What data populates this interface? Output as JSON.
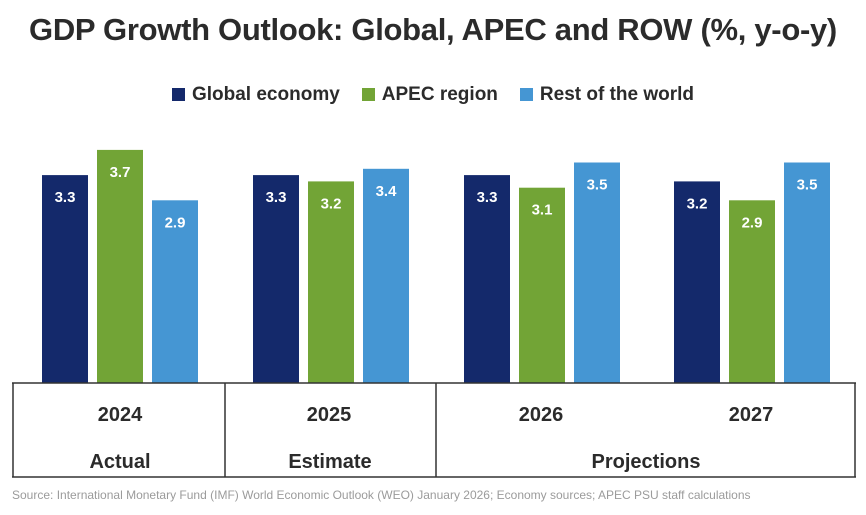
{
  "chart_data": {
    "type": "bar",
    "title": "GDP Growth Outlook: Global, APEC and ROW (%, y-o-y)",
    "categories": [
      "2024",
      "2025",
      "2026",
      "2027"
    ],
    "groups": [
      {
        "label": "Actual",
        "categories": [
          "2024"
        ]
      },
      {
        "label": "Estimate",
        "categories": [
          "2025"
        ]
      },
      {
        "label": "Projections",
        "categories": [
          "2026",
          "2027"
        ]
      }
    ],
    "series": [
      {
        "name": "Global economy",
        "color": "#14296b",
        "values": [
          3.3,
          3.3,
          3.3,
          3.2
        ],
        "labels": [
          "3.3",
          "3.3",
          "3.3",
          "3.2"
        ]
      },
      {
        "name": "APEC region",
        "color": "#72a436",
        "values": [
          3.7,
          3.2,
          3.1,
          2.9
        ],
        "labels": [
          "3.7",
          "3.2",
          "3.1",
          "2.9"
        ]
      },
      {
        "name": "Rest of the world",
        "color": "#4596d3",
        "values": [
          2.9,
          3.4,
          3.5,
          3.5
        ],
        "labels": [
          "2.9",
          "3.4",
          "3.5",
          "3.5"
        ]
      }
    ],
    "ylim": [
      0,
      4
    ],
    "legend_position": "top-center",
    "grid": false,
    "source": "Source: International Monetary Fund (IMF) World Economic Outlook (WEO) January 2026; Economy sources; APEC PSU staff calculations"
  }
}
